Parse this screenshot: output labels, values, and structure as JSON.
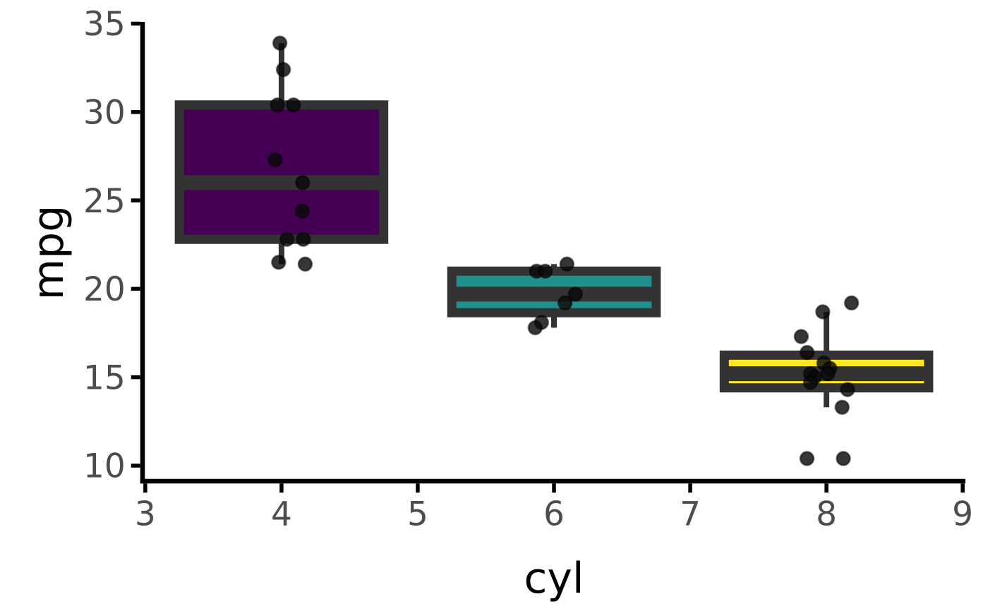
{
  "figure": {
    "background": "#ffffff"
  },
  "chart_data": {
    "type": "boxplot",
    "title": "",
    "xlabel": "cyl",
    "ylabel": "mpg",
    "x_ticks": [
      3,
      4,
      5,
      6,
      7,
      8,
      9
    ],
    "y_ticks": [
      10,
      15,
      20,
      25,
      30,
      35
    ],
    "xlim": [
      2.98,
      9.02
    ],
    "ylim": [
      9.12,
      35.1
    ],
    "grid": false,
    "legend": false,
    "box_half_width": 0.75,
    "style_colors": {
      "axis_line": "#000000",
      "tick_mark": "#000000",
      "tick_label": "#4d4d4d",
      "axis_title": "#000000",
      "box_border": "#333333",
      "median_line": "#333333",
      "whisker": "#333333",
      "point_fill": "rgba(10,10,10,0.82)",
      "point_stroke": "rgba(0,0,0,0.5)"
    },
    "groups": [
      {
        "cyl": 4,
        "fill": "#440154",
        "stats": {
          "whisker_low": 21.4,
          "q1": 22.8,
          "median": 26.0,
          "q3": 30.4,
          "whisker_high": 33.9
        },
        "points": [
          [
            3.988,
            33.9
          ],
          [
            4.014,
            32.4
          ],
          [
            3.97,
            30.4
          ],
          [
            4.088,
            30.4
          ],
          [
            3.953,
            27.3
          ],
          [
            4.155,
            26.0
          ],
          [
            4.152,
            24.4
          ],
          [
            4.04,
            22.8
          ],
          [
            4.16,
            22.8
          ],
          [
            3.979,
            21.5
          ],
          [
            4.174,
            21.4
          ]
        ]
      },
      {
        "cyl": 6,
        "fill": "#21908C",
        "stats": {
          "whisker_low": 17.8,
          "q1": 18.65,
          "median": 19.7,
          "q3": 21.0,
          "whisker_high": 21.4
        },
        "points": [
          [
            6.095,
            21.4
          ],
          [
            5.872,
            21.0
          ],
          [
            5.936,
            21.0
          ],
          [
            6.157,
            19.7
          ],
          [
            6.081,
            19.2
          ],
          [
            5.908,
            18.1
          ],
          [
            5.862,
            17.8
          ]
        ]
      },
      {
        "cyl": 8,
        "fill": "#FDE725",
        "stats": {
          "whisker_low": 13.3,
          "q1": 14.4,
          "median": 15.2,
          "q3": 16.25,
          "whisker_high": 18.7
        },
        "points": [
          [
            8.184,
            19.2
          ],
          [
            7.973,
            18.7
          ],
          [
            7.815,
            17.3
          ],
          [
            7.858,
            16.4
          ],
          [
            7.981,
            15.8
          ],
          [
            8.025,
            15.5
          ],
          [
            7.883,
            15.2
          ],
          [
            8.01,
            15.2
          ],
          [
            7.912,
            15.0
          ],
          [
            7.883,
            14.7
          ],
          [
            8.155,
            14.3
          ],
          [
            8.115,
            13.3
          ],
          [
            7.857,
            10.4
          ],
          [
            8.124,
            10.4
          ]
        ]
      }
    ]
  }
}
